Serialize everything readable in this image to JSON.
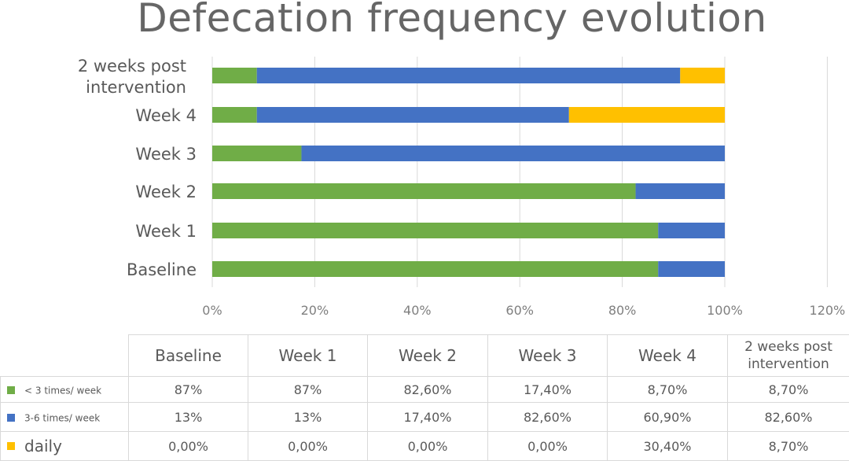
{
  "chart_data": {
    "type": "bar",
    "orientation": "horizontal",
    "stacked": "percent",
    "title": "Defecation frequency evolution",
    "xlabel": "",
    "ylabel": "",
    "xlim": [
      0,
      120
    ],
    "x_ticks": [
      "0%",
      "20%",
      "40%",
      "60%",
      "80%",
      "100%",
      "120%"
    ],
    "x_tick_values": [
      0,
      20,
      40,
      60,
      80,
      100,
      120
    ],
    "grid": true,
    "legend": "table-bottom",
    "categories": [
      "Baseline",
      "Week 1",
      "Week 2",
      "Week 3",
      "Week 4",
      "2 weeks post intervention"
    ],
    "category_lines": [
      [
        "Baseline"
      ],
      [
        "Week 1"
      ],
      [
        "Week 2"
      ],
      [
        "Week 3"
      ],
      [
        "Week 4"
      ],
      [
        "2 weeks post",
        "intervention"
      ]
    ],
    "series": [
      {
        "name": "< 3 times/ week",
        "color": "#70ad47",
        "values": [
          87,
          87,
          82.6,
          17.4,
          8.7,
          8.7
        ],
        "labels": [
          "87%",
          "87%",
          "82,60%",
          "17,40%",
          "8,70%",
          "8,70%"
        ]
      },
      {
        "name": "3-6 times/ week",
        "color": "#4472c4",
        "values": [
          13,
          13,
          17.4,
          82.6,
          60.9,
          82.6
        ],
        "labels": [
          "13%",
          "13%",
          "17,40%",
          "82,60%",
          "60,90%",
          "82,60%"
        ]
      },
      {
        "name": "daily",
        "color": "#ffc000",
        "values": [
          0,
          0,
          0,
          0,
          30.4,
          8.7
        ],
        "labels": [
          "0,00%",
          "0,00%",
          "0,00%",
          "0,00%",
          "30,40%",
          "8,70%"
        ]
      }
    ]
  },
  "table": {
    "headers": [
      "Baseline",
      "Week 1",
      "Week 2",
      "Week 3",
      "Week 4",
      "2 weeks post intervention"
    ],
    "last_header_lines": [
      "2 weeks post",
      "intervention"
    ]
  }
}
